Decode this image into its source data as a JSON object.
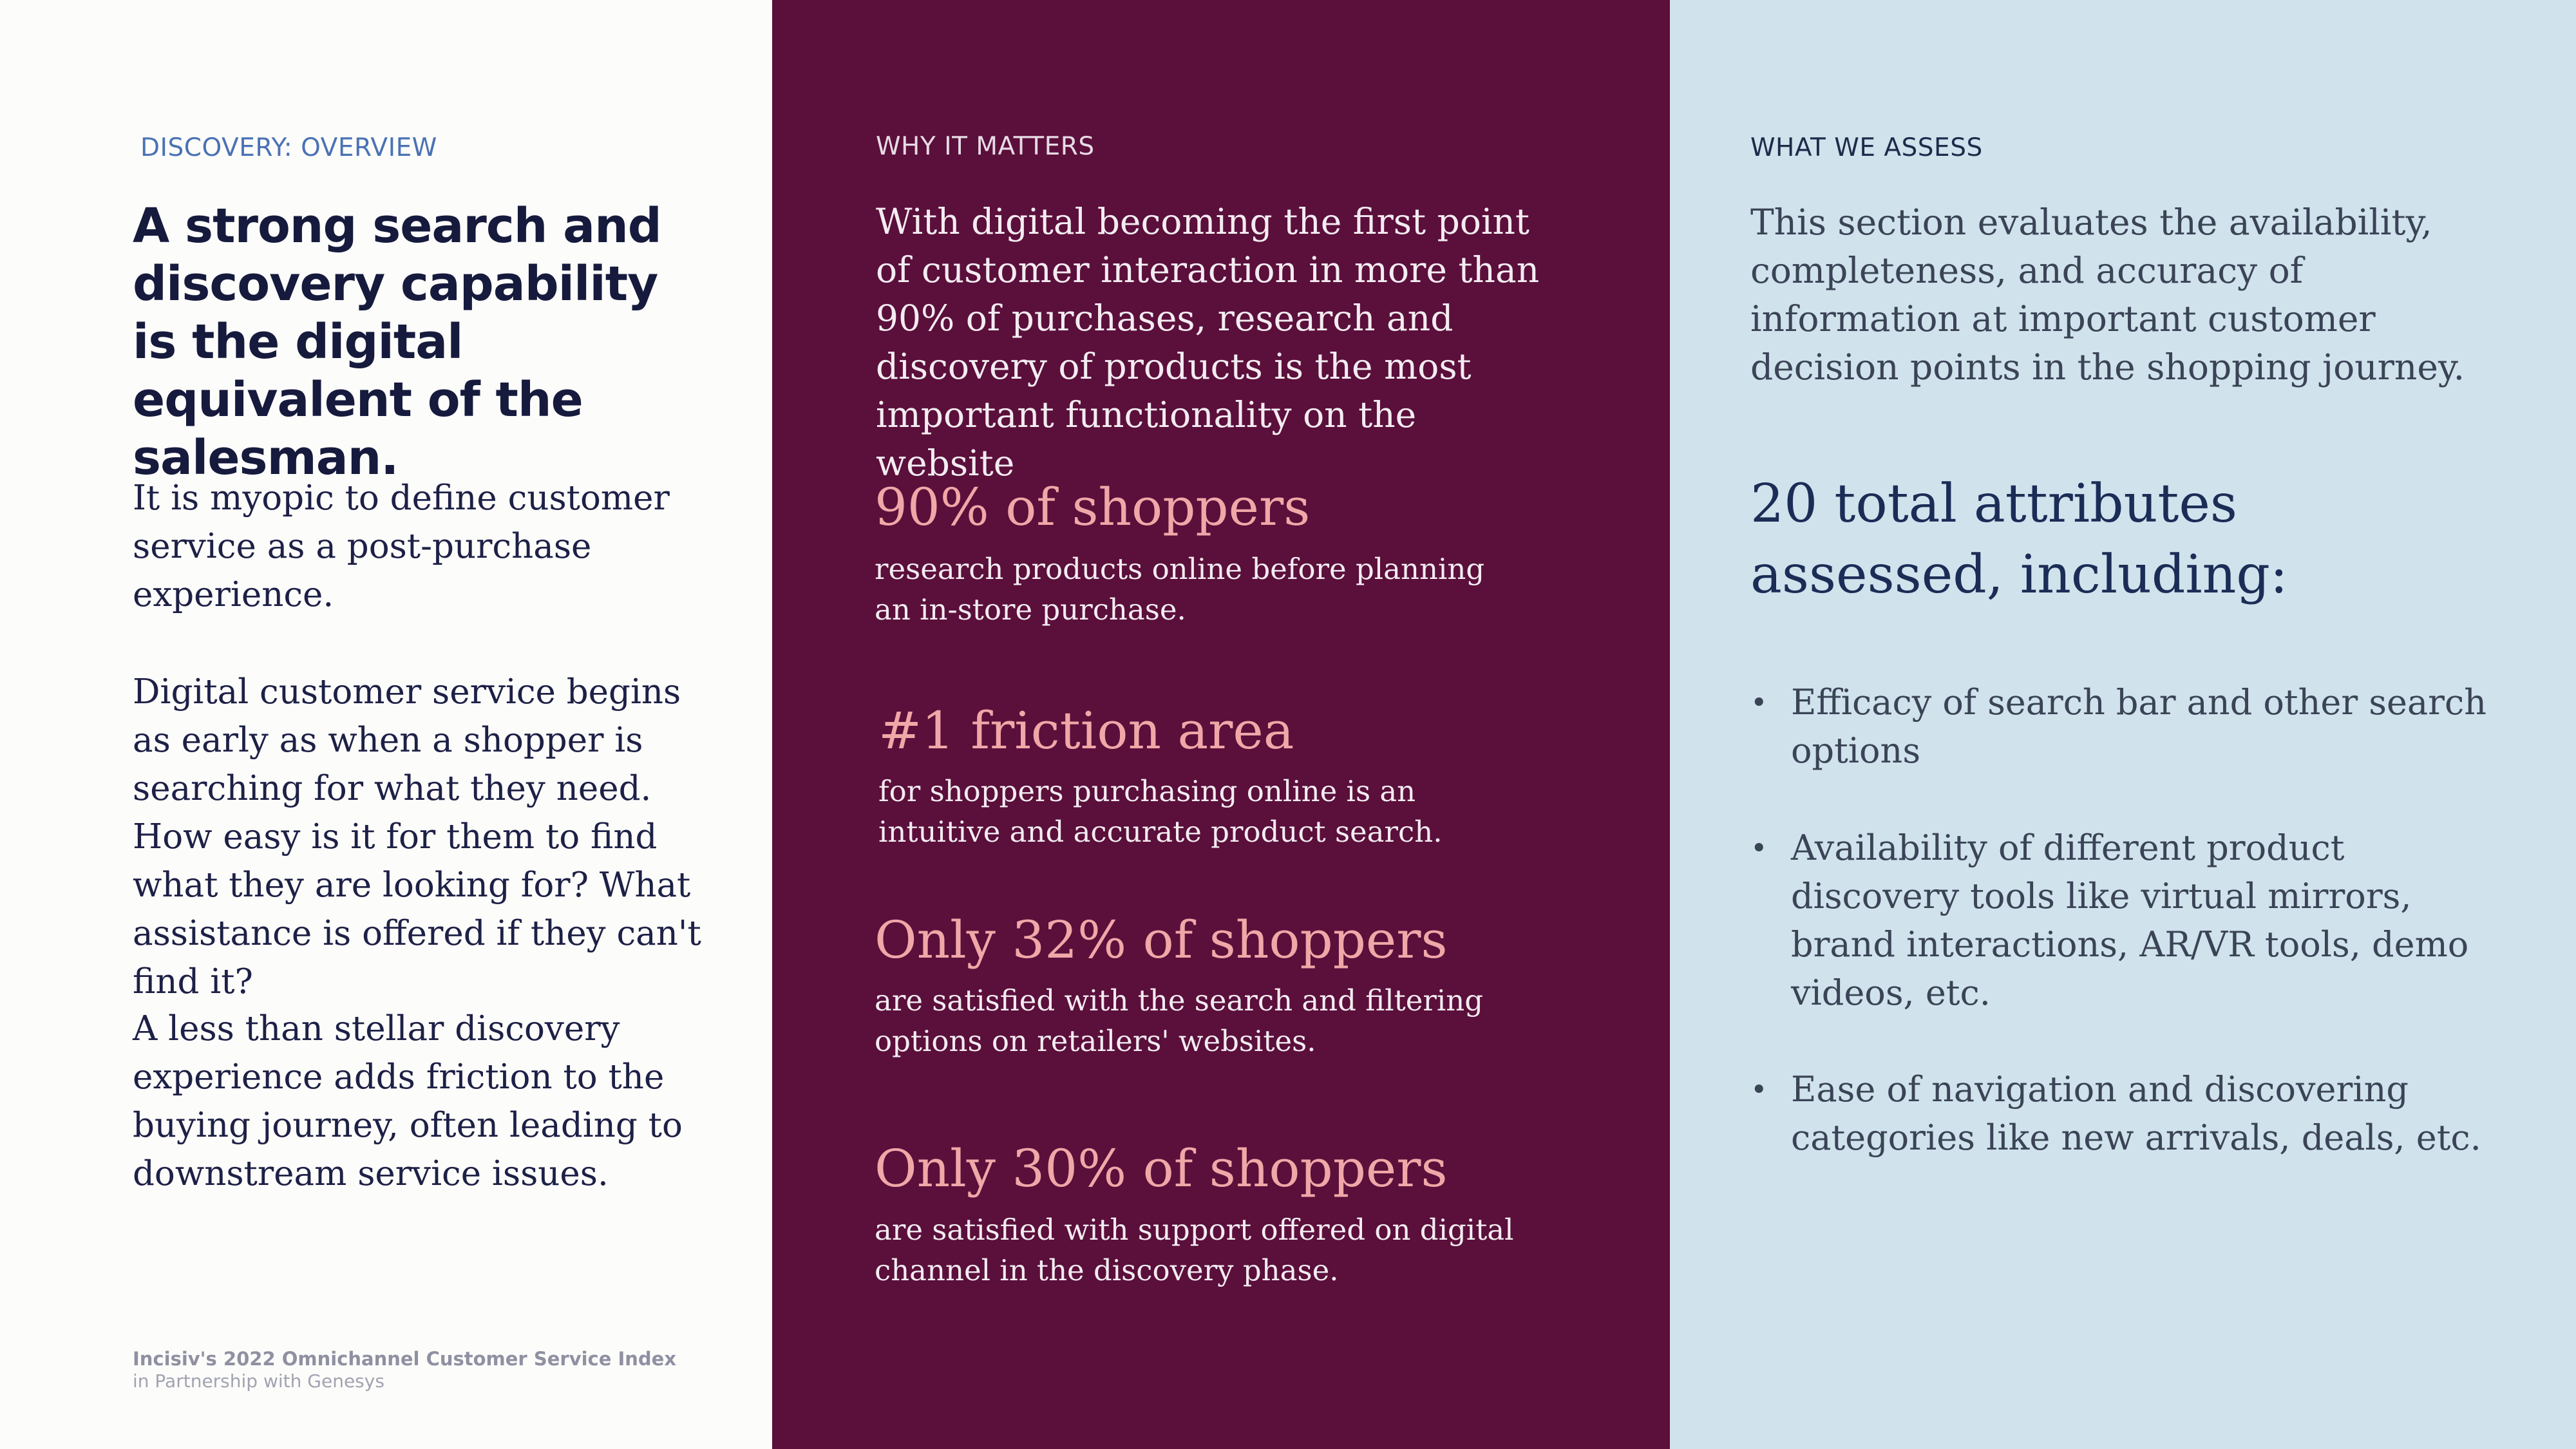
{
  "left": {
    "eyebrow": "DISCOVERY: OVERVIEW",
    "headline": "A strong search and discovery capability is the digital equivalent of the salesman.",
    "paragraphs": [
      "It is myopic to define customer service as a post-purchase experience.",
      "Digital customer service begins as early as when a shopper is searching for what they need. How easy is it for them to find what they are looking for? What assistance is offered if they can't find it?",
      "A less than stellar discovery experience adds friction to the buying journey, often leading to downstream service issues."
    ],
    "footer_title": "Incisiv's 2022 Omnichannel Customer Service  Index",
    "footer_subtitle": "in Partnership with Genesys"
  },
  "middle": {
    "eyebrow": "WHY IT MATTERS",
    "intro": "With digital becoming the first point of customer interaction in more than 90% of purchases, research and discovery of products is the most important functionality on the website",
    "stats": [
      {
        "headline": "90% of shoppers",
        "description": "research products online before planning an in-store purchase."
      },
      {
        "headline": "#1 friction area",
        "description": "for shoppers purchasing online is an intuitive and accurate product search."
      },
      {
        "headline": "Only 32% of shoppers",
        "description": "are satisfied with the search and filtering options on retailers' websites."
      },
      {
        "headline": "Only 30% of shoppers",
        "description": "are satisfied with support offered on digital channel in the discovery phase."
      }
    ]
  },
  "right": {
    "eyebrow": "WHAT WE ASSESS",
    "intro": "This section evaluates the availability, completeness, and accuracy of information at important customer decision points in the shopping journey.",
    "heading": "20 total attributes assessed, including:",
    "bullet_glyph": "•",
    "bullets": [
      "Efficacy of search bar and other search options",
      "Availability of different product discovery tools like virtual mirrors, brand interactions, AR/VR tools, demo videos, etc.",
      "Ease of navigation and discovering categories like new arrivals, deals, etc."
    ]
  },
  "colors": {
    "left_background": "#fcfcfa",
    "middle_background": "#5b0f3b",
    "right_background": "#d0e2ec",
    "headline_text": "#161a3d",
    "stat_accent": "#f0a7a7",
    "eyebrow_blue": "#4a72b4"
  }
}
